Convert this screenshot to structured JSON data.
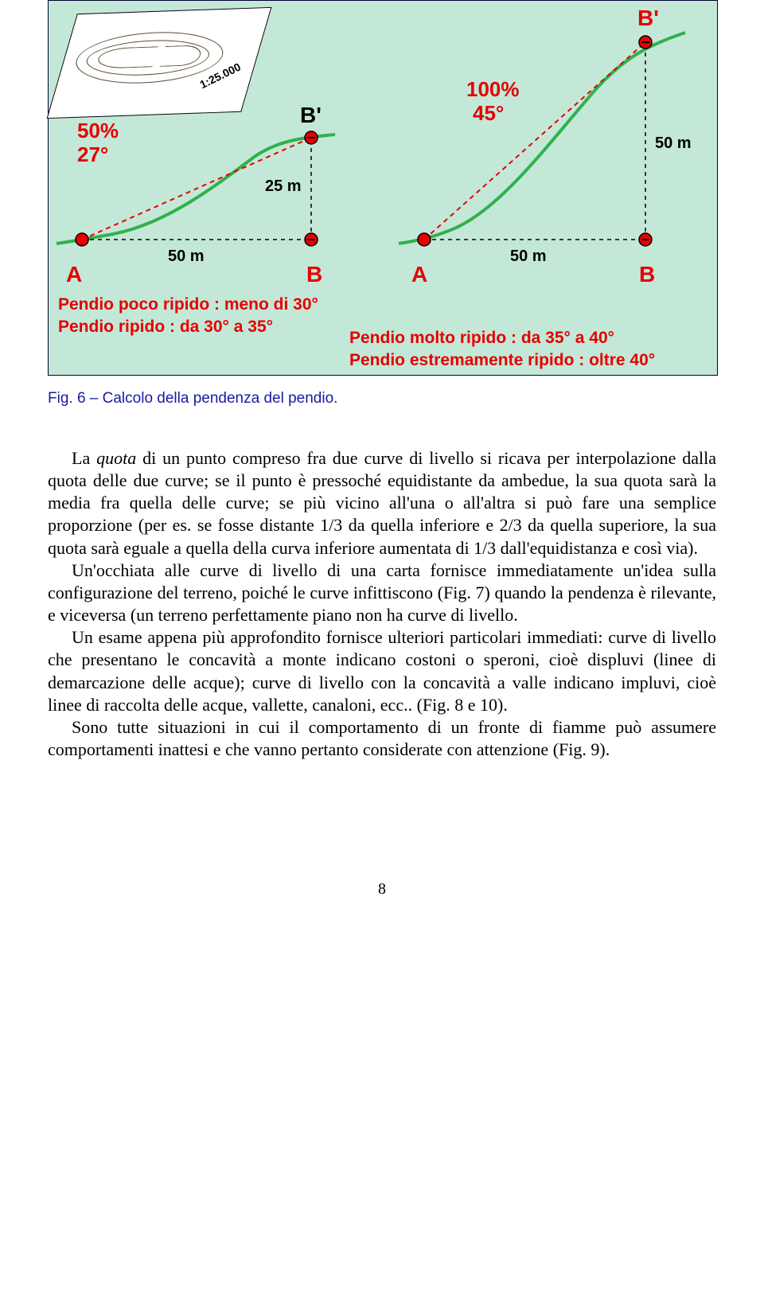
{
  "figure": {
    "bg_color": "#c4e8d8",
    "border_color": "#000033",
    "terrain_line_color": "#2fb24c",
    "terrain_line_width": 4,
    "dashed_color": "#e60000",
    "dashed_pattern": "6 5",
    "point_fill": "#e60000",
    "point_stroke": "#000000",
    "map": {
      "scale": "1:25.000"
    },
    "left": {
      "percent": "50%",
      "angle": "27°",
      "A": "A",
      "B": "B",
      "B_prime": "B'",
      "run": "50 m",
      "rise": "25 m"
    },
    "right": {
      "percent": "100%",
      "angle": "45°",
      "A": "A",
      "B": "B",
      "B_prime": "B'",
      "run": "50 m",
      "rise": "50 m"
    },
    "classes": {
      "low": "Pendio poco ripido : meno di 30°",
      "mid": "Pendio ripido : da 30° a 35°",
      "high": "Pendio molto ripido : da 35° a 40°",
      "ext": "Pendio estremamente ripido : oltre 40°"
    }
  },
  "caption": "Fig. 6 – Calcolo della pendenza  del pendio.",
  "para": {
    "p1": "La quota di un punto compreso fra due curve di livello si ricava per interpolazione dalla quota delle due curve; se il punto è pressoché equidistante da ambedue, la sua quota sarà la media fra quella delle curve; se più vicino all'una o all'altra si può fare una semplice proporzione (per es. se fosse distante 1/3 da quella inferiore e 2/3 da quella superiore, la sua quota sarà eguale a quella della curva inferiore aumentata di 1/3 dall'equidistanza e così via).",
    "p2": "Un'occhiata alle curve di livello di una carta fornisce immediatamente un'idea sulla configurazione del terreno, poiché le curve infittiscono (Fig. 7) quando la pendenza è rilevante, e viceversa (un terreno perfettamente piano non ha curve di livello.",
    "p3": "Un esame appena più approfondito fornisce ulteriori particolari immediati: curve di livello che presentano le concavità a monte indicano costoni o speroni, cioè displuvi (linee di demarcazione delle acque); curve di livello con la concavità a valle indicano impluvi, cioè linee di raccolta delle acque, vallette, canaloni, ecc.. (Fig. 8 e 10).",
    "p4": "Sono tutte situazioni in cui il comportamento di un fronte di fiamme può assumere comportamenti inattesi e che vanno pertanto considerate con attenzione (Fig. 9)."
  },
  "pagenum": "8"
}
